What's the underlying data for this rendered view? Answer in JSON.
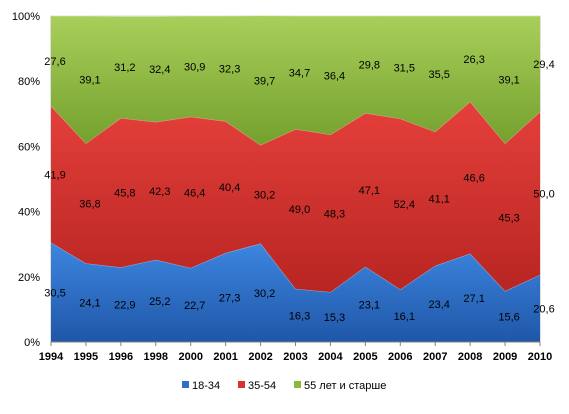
{
  "chart_data": {
    "type": "area",
    "stacked": true,
    "percent": true,
    "categories": [
      "1994",
      "1995",
      "1996",
      "1998",
      "2000",
      "2001",
      "2002",
      "2003",
      "2004",
      "2005",
      "2006",
      "2007",
      "2008",
      "2009",
      "2010"
    ],
    "series": [
      {
        "name": "18-34",
        "color": "#2f6fc9",
        "values": [
          30.5,
          24.1,
          22.9,
          25.2,
          22.7,
          27.3,
          30.2,
          16.3,
          15.3,
          23.1,
          16.1,
          23.4,
          27.1,
          15.6,
          20.6
        ],
        "labels": [
          "30,5",
          "24,1",
          "22,9",
          "25,2",
          "22,7",
          "27,3",
          "30,2",
          "16,3",
          "15,3",
          "23,1",
          "16,1",
          "23,4",
          "27,1",
          "15,6",
          "20,6"
        ]
      },
      {
        "name": "35-54",
        "color": "#d7322f",
        "values": [
          41.9,
          36.8,
          45.8,
          42.3,
          46.4,
          40.4,
          30.2,
          49.0,
          48.3,
          47.1,
          52.4,
          41.1,
          46.6,
          45.3,
          50.0
        ],
        "labels": [
          "41,9",
          "36,8",
          "45,8",
          "42,3",
          "46,4",
          "40,4",
          "30,2",
          "49,0",
          "48,3",
          "47,1",
          "52,4",
          "41,1",
          "46,6",
          "45,3",
          "50,0"
        ]
      },
      {
        "name": "55 лет и старше",
        "color": "#8db83e",
        "values": [
          27.6,
          39.1,
          31.2,
          32.4,
          30.9,
          32.3,
          39.7,
          34.7,
          36.4,
          29.8,
          31.5,
          35.5,
          26.3,
          39.1,
          29.4
        ],
        "labels": [
          "27,6",
          "39,1",
          "31,2",
          "32,4",
          "30,9",
          "32,3",
          "39,7",
          "34,7",
          "36,4",
          "29,8",
          "31,5",
          "35,5",
          "26,3",
          "39,1",
          "29,4"
        ]
      }
    ],
    "y_ticks": [
      "0%",
      "20%",
      "40%",
      "60%",
      "80%",
      "100%"
    ],
    "ylim": [
      0,
      100
    ],
    "grid": true,
    "legend_position": "bottom"
  }
}
